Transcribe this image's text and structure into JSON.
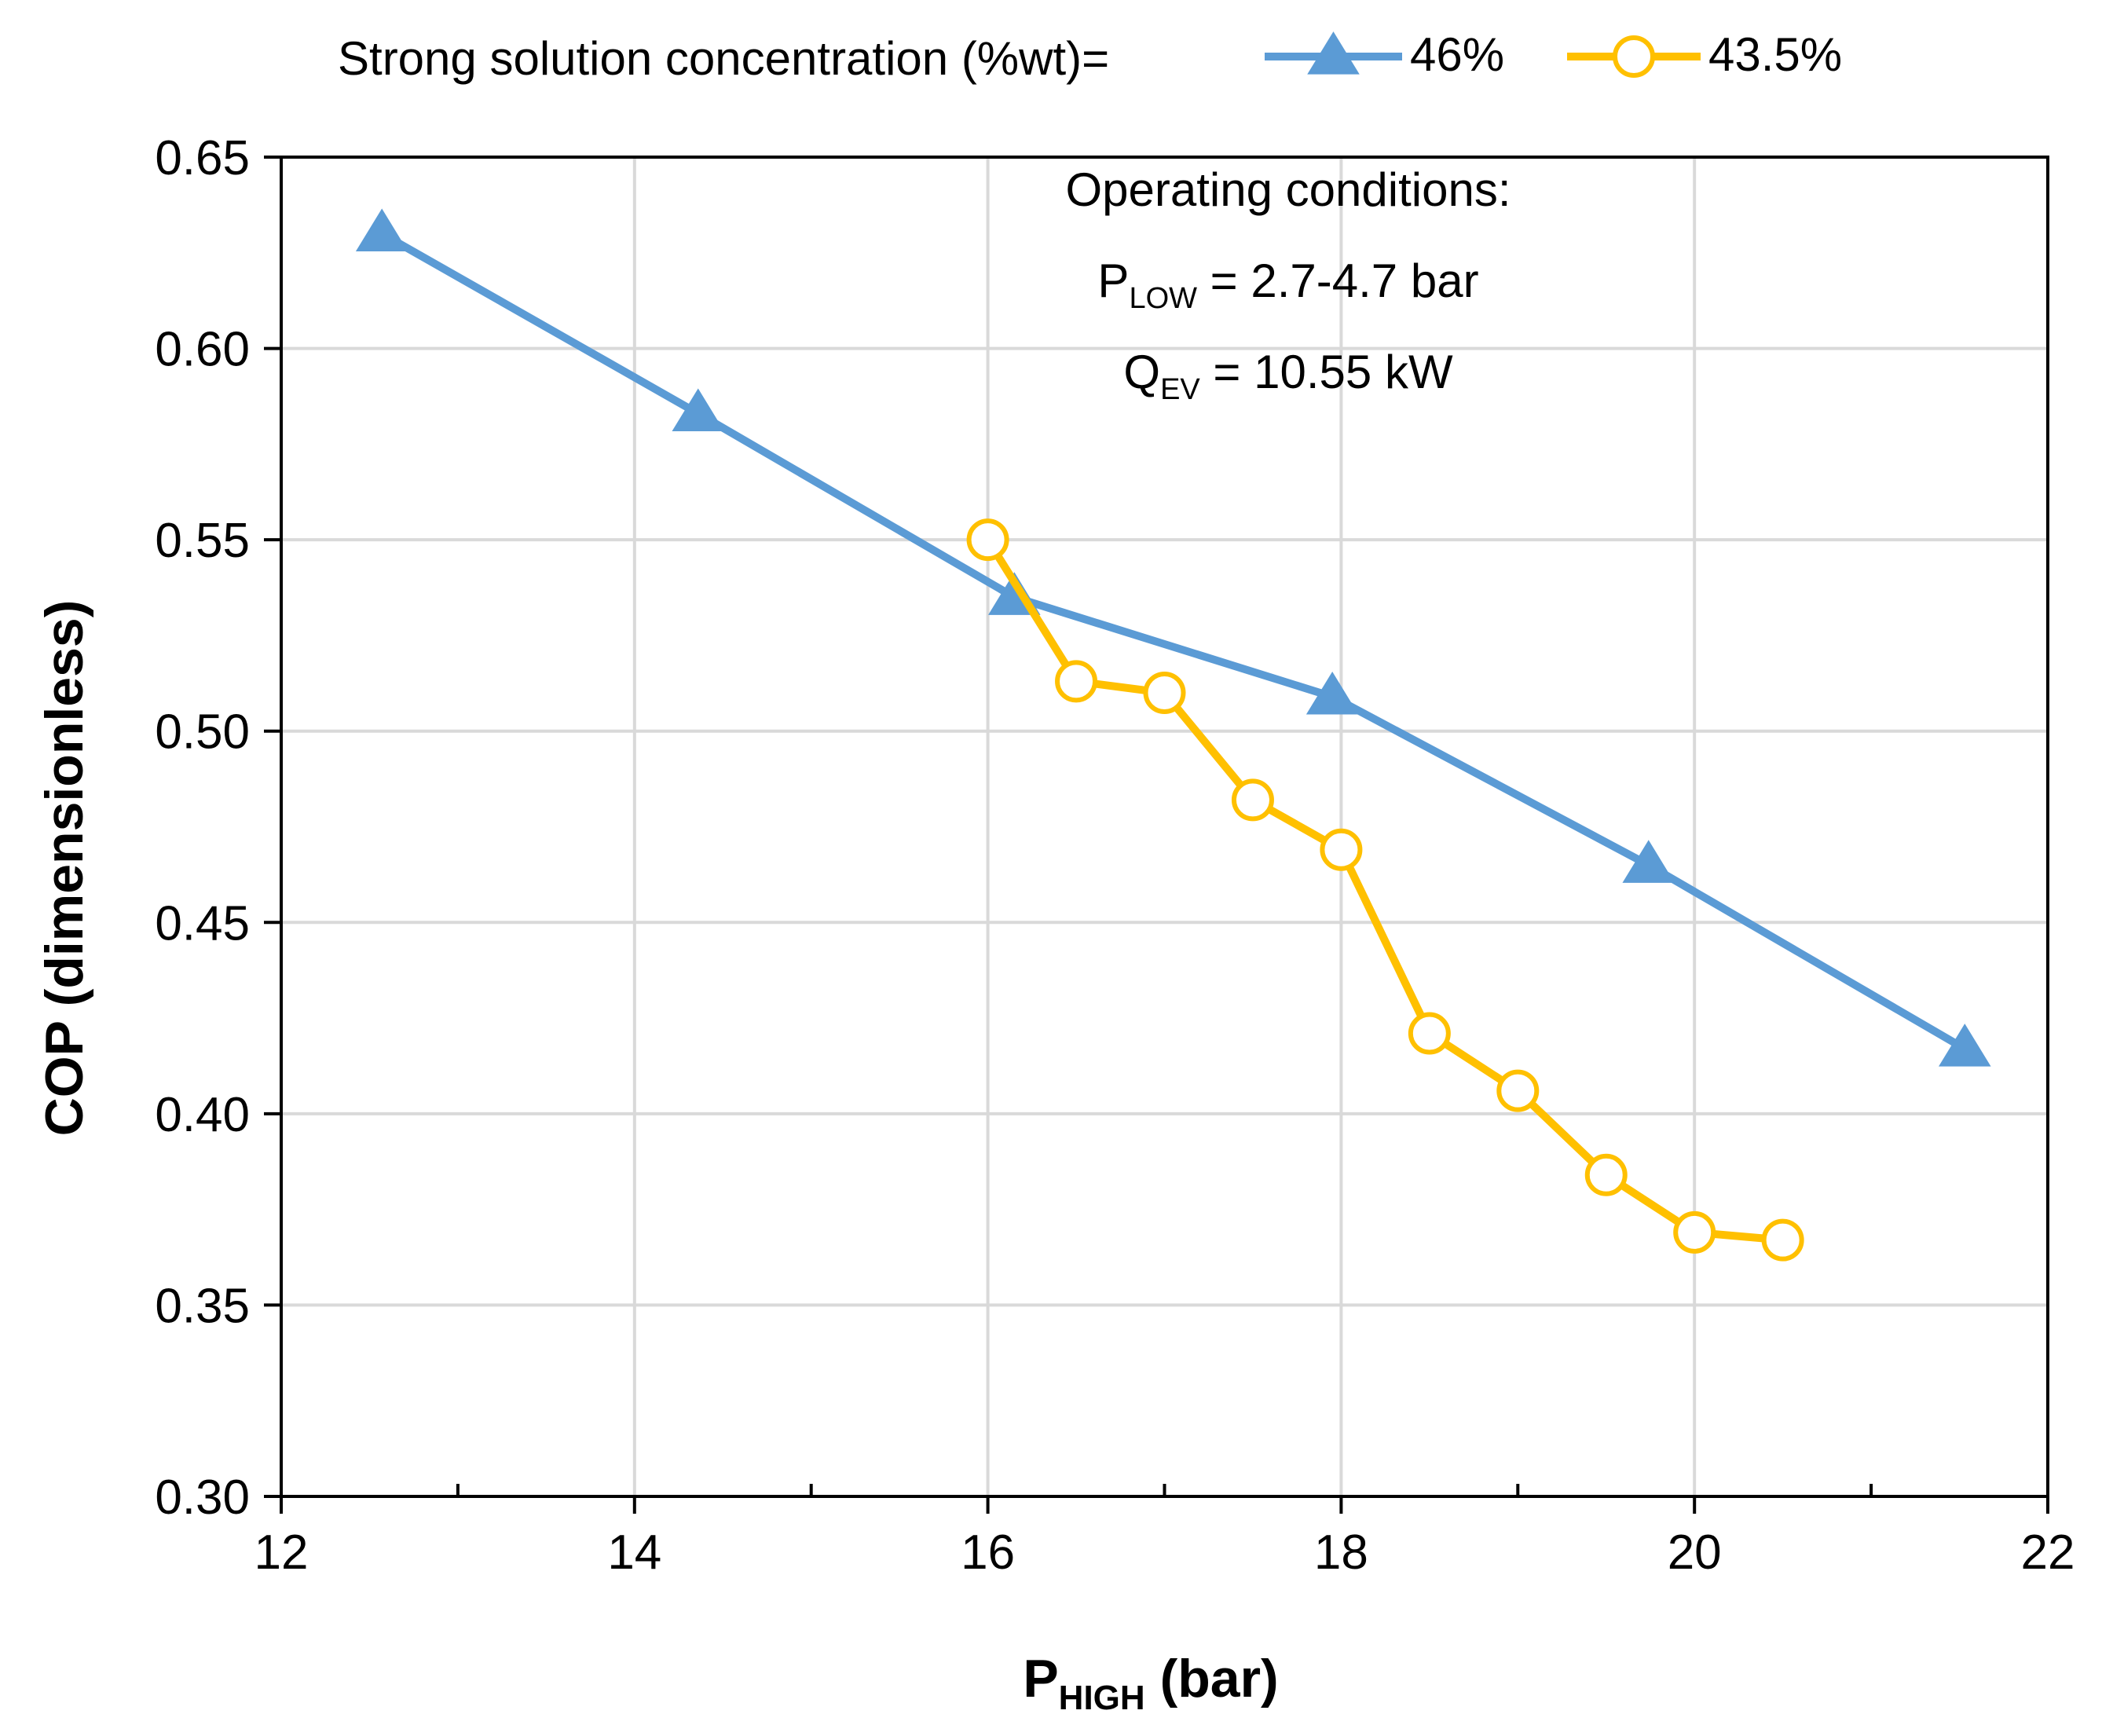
{
  "chart_data": {
    "type": "line",
    "title": "",
    "xlabel": {
      "main": "P",
      "sub": "HIGH",
      "suffix": " (bar)"
    },
    "ylabel": "COP (dimensionless)",
    "xlim": [
      12,
      22
    ],
    "ylim": [
      0.3,
      0.65
    ],
    "x_ticks": [
      12,
      14,
      16,
      18,
      20,
      22
    ],
    "x_minor_ticks": [
      13,
      15,
      17,
      19,
      21
    ],
    "y_ticks": [
      0.3,
      0.35,
      0.4,
      0.45,
      0.5,
      0.55,
      0.6,
      0.65
    ],
    "x_tick_labels": [
      "12",
      "14",
      "16",
      "18",
      "20",
      "22"
    ],
    "y_tick_labels": [
      "0.30",
      "0.35",
      "0.40",
      "0.45",
      "0.50",
      "0.55",
      "0.60",
      "0.65"
    ],
    "grid": true,
    "legend": {
      "title": "Strong solution concentration (%wt)=",
      "placement": "top"
    },
    "series": [
      {
        "name": "46%",
        "color": "#5b9bd5",
        "marker": "triangle",
        "x": [
          12.57,
          14.36,
          16.15,
          17.95,
          19.74,
          21.53
        ],
        "y": [
          0.63,
          0.583,
          0.535,
          0.509,
          0.465,
          0.417
        ]
      },
      {
        "name": "43.5%",
        "color": "#ffc000",
        "marker": "open-circle",
        "x": [
          16.0,
          16.5,
          17.0,
          17.5,
          18.0,
          18.5,
          19.0,
          19.5,
          20.0,
          20.5
        ],
        "y": [
          0.55,
          0.513,
          0.51,
          0.482,
          0.469,
          0.421,
          0.406,
          0.384,
          0.369,
          0.367
        ]
      }
    ],
    "annotations": {
      "heading": "Operating conditions:",
      "line1": {
        "main": "P",
        "sub": "LOW",
        "suffix": " = 2.7-4.7 bar"
      },
      "line2": {
        "main": "Q",
        "sub": "EV",
        "suffix": " = 10.55 kW"
      }
    }
  }
}
